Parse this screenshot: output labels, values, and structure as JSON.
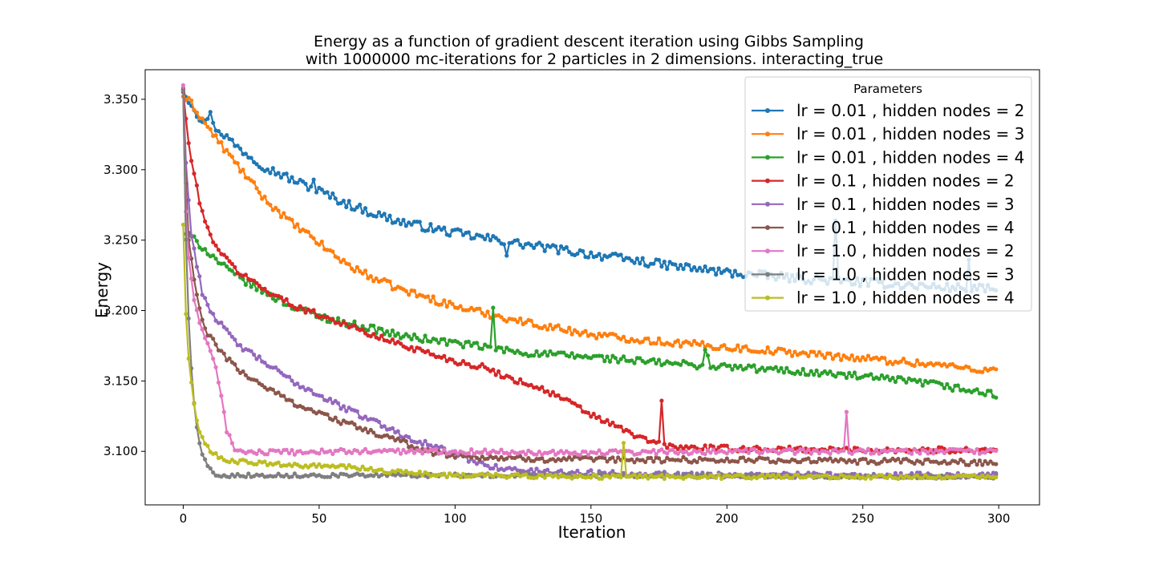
{
  "chart_data": {
    "type": "line",
    "title_line1": "Energy as a function of gradient descent iteration using Gibbs Sampling",
    "title_line2": "with 1000000 mc-iterations for 2 particles in 2 dimensions. interacting_true",
    "xlabel": "Iteration",
    "ylabel": "Energy",
    "xlim": [
      -14,
      315
    ],
    "ylim": [
      3.062,
      3.371
    ],
    "xticks": [
      0,
      50,
      100,
      150,
      200,
      250,
      300
    ],
    "yticks": [
      3.1,
      3.15,
      3.2,
      3.25,
      3.3,
      3.35
    ],
    "xtick_labels": [
      "0",
      "50",
      "100",
      "150",
      "200",
      "250",
      "300"
    ],
    "ytick_labels": [
      "3.100",
      "3.150",
      "3.200",
      "3.250",
      "3.300",
      "3.350"
    ],
    "legend": {
      "title": "Parameters",
      "placement": "top-right"
    },
    "x_count": 300,
    "series": [
      {
        "name": "lr = 0.01 , hidden nodes = 2",
        "color": "#1f77b4",
        "points": [
          [
            0,
            3.356
          ],
          [
            3,
            3.347
          ],
          [
            6,
            3.337
          ],
          [
            10,
            3.333
          ],
          [
            15,
            3.325
          ],
          [
            20,
            3.316
          ],
          [
            25,
            3.309
          ],
          [
            30,
            3.302
          ],
          [
            40,
            3.293
          ],
          [
            50,
            3.285
          ],
          [
            60,
            3.276
          ],
          [
            70,
            3.269
          ],
          [
            80,
            3.263
          ],
          [
            100,
            3.255
          ],
          [
            125,
            3.247
          ],
          [
            150,
            3.24
          ],
          [
            175,
            3.233
          ],
          [
            200,
            3.227
          ],
          [
            225,
            3.223
          ],
          [
            250,
            3.22
          ],
          [
            275,
            3.217
          ],
          [
            299,
            3.215
          ]
        ],
        "spikes": [
          [
            10,
            3.341
          ],
          [
            48,
            3.293
          ],
          [
            119,
            3.239
          ],
          [
            240,
            3.264
          ],
          [
            289,
            3.236
          ]
        ],
        "noise": 0.003
      },
      {
        "name": "lr = 0.01 , hidden nodes = 3",
        "color": "#ff7f0e",
        "points": [
          [
            0,
            3.352
          ],
          [
            3,
            3.347
          ],
          [
            8,
            3.333
          ],
          [
            15,
            3.315
          ],
          [
            20,
            3.303
          ],
          [
            25,
            3.291
          ],
          [
            30,
            3.279
          ],
          [
            40,
            3.262
          ],
          [
            50,
            3.248
          ],
          [
            60,
            3.233
          ],
          [
            70,
            3.223
          ],
          [
            80,
            3.215
          ],
          [
            100,
            3.203
          ],
          [
            125,
            3.192
          ],
          [
            150,
            3.183
          ],
          [
            175,
            3.178
          ],
          [
            200,
            3.174
          ],
          [
            225,
            3.17
          ],
          [
            250,
            3.166
          ],
          [
            275,
            3.162
          ],
          [
            299,
            3.157
          ]
        ],
        "spikes": [
          [
            59,
            3.236
          ],
          [
            240,
            3.168
          ]
        ],
        "noise": 0.0025
      },
      {
        "name": "lr = 0.01 , hidden nodes = 4",
        "color": "#2ca02c",
        "points": [
          [
            0,
            3.356
          ],
          [
            1,
            3.255
          ],
          [
            3,
            3.252
          ],
          [
            6,
            3.247
          ],
          [
            10,
            3.24
          ],
          [
            15,
            3.231
          ],
          [
            20,
            3.224
          ],
          [
            30,
            3.213
          ],
          [
            40,
            3.203
          ],
          [
            50,
            3.196
          ],
          [
            60,
            3.191
          ],
          [
            70,
            3.187
          ],
          [
            80,
            3.182
          ],
          [
            100,
            3.177
          ],
          [
            125,
            3.17
          ],
          [
            150,
            3.167
          ],
          [
            175,
            3.163
          ],
          [
            200,
            3.16
          ],
          [
            225,
            3.157
          ],
          [
            250,
            3.153
          ],
          [
            275,
            3.148
          ],
          [
            299,
            3.14
          ]
        ],
        "spikes": [
          [
            114,
            3.202
          ],
          [
            192,
            3.172
          ],
          [
            193,
            3.168
          ]
        ],
        "noise": 0.0025
      },
      {
        "name": "lr = 0.1 , hidden nodes = 2",
        "color": "#d62728",
        "points": [
          [
            0,
            3.355
          ],
          [
            2,
            3.318
          ],
          [
            4,
            3.296
          ],
          [
            6,
            3.278
          ],
          [
            8,
            3.263
          ],
          [
            10,
            3.253
          ],
          [
            15,
            3.238
          ],
          [
            20,
            3.228
          ],
          [
            30,
            3.215
          ],
          [
            40,
            3.204
          ],
          [
            50,
            3.197
          ],
          [
            60,
            3.19
          ],
          [
            70,
            3.182
          ],
          [
            80,
            3.176
          ],
          [
            90,
            3.17
          ],
          [
            100,
            3.164
          ],
          [
            110,
            3.16
          ],
          [
            120,
            3.152
          ],
          [
            130,
            3.146
          ],
          [
            140,
            3.137
          ],
          [
            150,
            3.126
          ],
          [
            160,
            3.117
          ],
          [
            170,
            3.108
          ],
          [
            180,
            3.103
          ],
          [
            200,
            3.102
          ],
          [
            250,
            3.101
          ],
          [
            299,
            3.101
          ]
        ],
        "spikes": [
          [
            176,
            3.136
          ]
        ],
        "noise": 0.002
      },
      {
        "name": "lr = 0.1 , hidden nodes = 3",
        "color": "#9467bd",
        "points": [
          [
            0,
            3.358
          ],
          [
            1,
            3.305
          ],
          [
            2,
            3.278
          ],
          [
            3,
            3.255
          ],
          [
            5,
            3.232
          ],
          [
            7,
            3.213
          ],
          [
            10,
            3.2
          ],
          [
            15,
            3.187
          ],
          [
            20,
            3.176
          ],
          [
            30,
            3.163
          ],
          [
            40,
            3.15
          ],
          [
            50,
            3.14
          ],
          [
            60,
            3.13
          ],
          [
            70,
            3.122
          ],
          [
            80,
            3.112
          ],
          [
            90,
            3.105
          ],
          [
            100,
            3.098
          ],
          [
            110,
            3.091
          ],
          [
            120,
            3.087
          ],
          [
            140,
            3.085
          ],
          [
            170,
            3.084
          ],
          [
            200,
            3.083
          ],
          [
            250,
            3.083
          ],
          [
            299,
            3.083
          ]
        ],
        "spikes": [],
        "noise": 0.002
      },
      {
        "name": "lr = 0.1 , hidden nodes = 4",
        "color": "#8c564b",
        "points": [
          [
            0,
            3.357
          ],
          [
            1,
            3.29
          ],
          [
            2,
            3.25
          ],
          [
            4,
            3.222
          ],
          [
            6,
            3.2
          ],
          [
            8,
            3.187
          ],
          [
            12,
            3.175
          ],
          [
            20,
            3.158
          ],
          [
            30,
            3.146
          ],
          [
            40,
            3.135
          ],
          [
            50,
            3.127
          ],
          [
            60,
            3.12
          ],
          [
            70,
            3.113
          ],
          [
            80,
            3.107
          ],
          [
            90,
            3.1
          ],
          [
            100,
            3.097
          ],
          [
            120,
            3.095
          ],
          [
            150,
            3.094
          ],
          [
            200,
            3.094
          ],
          [
            250,
            3.093
          ],
          [
            299,
            3.092
          ]
        ],
        "spikes": [],
        "noise": 0.002
      },
      {
        "name": "lr = 1.0 , hidden nodes = 2",
        "color": "#e377c2",
        "points": [
          [
            0,
            3.36
          ],
          [
            1,
            3.27
          ],
          [
            2,
            3.238
          ],
          [
            4,
            3.208
          ],
          [
            6,
            3.19
          ],
          [
            8,
            3.18
          ],
          [
            10,
            3.172
          ],
          [
            12,
            3.16
          ],
          [
            14,
            3.14
          ],
          [
            16,
            3.115
          ],
          [
            18,
            3.105
          ],
          [
            20,
            3.1
          ],
          [
            30,
            3.099
          ],
          [
            60,
            3.1
          ],
          [
            100,
            3.1
          ],
          [
            150,
            3.099
          ],
          [
            200,
            3.1
          ],
          [
            250,
            3.1
          ],
          [
            299,
            3.1
          ]
        ],
        "spikes": [
          [
            244,
            3.128
          ]
        ],
        "noise": 0.0018
      },
      {
        "name": "lr = 1.0 , hidden nodes = 3",
        "color": "#7f7f7f",
        "points": [
          [
            0,
            3.356
          ],
          [
            1,
            3.25
          ],
          [
            2,
            3.195
          ],
          [
            3,
            3.16
          ],
          [
            4,
            3.135
          ],
          [
            5,
            3.118
          ],
          [
            6,
            3.105
          ],
          [
            7,
            3.098
          ],
          [
            9,
            3.09
          ],
          [
            11,
            3.084
          ],
          [
            15,
            3.083
          ],
          [
            30,
            3.083
          ],
          [
            60,
            3.083
          ],
          [
            100,
            3.083
          ],
          [
            150,
            3.083
          ],
          [
            200,
            3.083
          ],
          [
            250,
            3.082
          ],
          [
            299,
            3.082
          ]
        ],
        "spikes": [],
        "noise": 0.0013
      },
      {
        "name": "lr = 1.0 , hidden nodes = 4",
        "color": "#bcbd22",
        "points": [
          [
            0,
            3.261
          ],
          [
            1,
            3.197
          ],
          [
            2,
            3.167
          ],
          [
            3,
            3.148
          ],
          [
            4,
            3.135
          ],
          [
            5,
            3.122
          ],
          [
            6,
            3.113
          ],
          [
            8,
            3.105
          ],
          [
            10,
            3.1
          ],
          [
            15,
            3.094
          ],
          [
            25,
            3.092
          ],
          [
            40,
            3.09
          ],
          [
            60,
            3.089
          ],
          [
            80,
            3.085
          ],
          [
            100,
            3.083
          ],
          [
            150,
            3.082
          ],
          [
            200,
            3.082
          ],
          [
            250,
            3.082
          ],
          [
            299,
            3.082
          ]
        ],
        "spikes": [
          [
            162,
            3.106
          ]
        ],
        "noise": 0.0015
      }
    ]
  }
}
